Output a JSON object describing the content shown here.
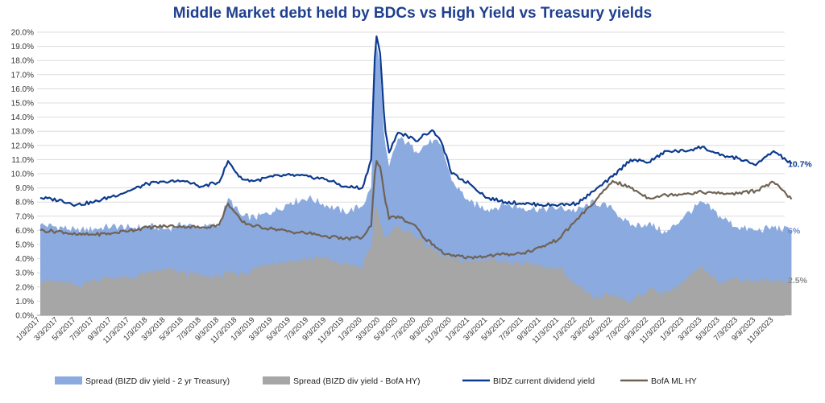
{
  "chart_data": {
    "type": "area",
    "title": "Middle Market debt held by BDCs vs High Yield vs Treasury yields",
    "ylim": [
      0,
      20
    ],
    "yticks": [
      "0.0%",
      "1.0%",
      "2.0%",
      "3.0%",
      "4.0%",
      "5.0%",
      "6.0%",
      "7.0%",
      "8.0%",
      "9.0%",
      "10.0%",
      "11.0%",
      "12.0%",
      "13.0%",
      "14.0%",
      "15.0%",
      "16.0%",
      "17.0%",
      "18.0%",
      "19.0%",
      "20.0%"
    ],
    "xticks": [
      "1/3/2017",
      "3/3/2017",
      "5/3/2017",
      "7/3/2017",
      "9/3/2017",
      "11/3/2017",
      "1/3/2018",
      "3/3/2018",
      "5/3/2018",
      "7/3/2018",
      "9/3/2018",
      "11/3/2018",
      "1/3/2019",
      "3/3/2019",
      "5/3/2019",
      "7/3/2019",
      "9/3/2019",
      "11/3/2019",
      "1/3/2020",
      "3/3/2020",
      "5/3/2020",
      "7/3/2020",
      "9/3/2020",
      "11/3/2020",
      "1/3/2021",
      "3/3/2021",
      "5/3/2021",
      "7/3/2021",
      "9/3/2021",
      "11/3/2021",
      "1/3/2022",
      "3/3/2022",
      "5/3/2022",
      "7/3/2022",
      "9/3/2022",
      "11/3/2022",
      "1/3/2023",
      "3/3/2023",
      "5/3/2023",
      "7/3/2023",
      "9/3/2023",
      "11/3/2023"
    ],
    "x_months": [
      0,
      2.5,
      4,
      6,
      8,
      10,
      12,
      14,
      16,
      18,
      20,
      21,
      22.5,
      24,
      26,
      28,
      30,
      32,
      34,
      36,
      37,
      37.5,
      38,
      38.5,
      39,
      40,
      41,
      42,
      43,
      44,
      45,
      46,
      48,
      50,
      52,
      54,
      56,
      58,
      60,
      62,
      64,
      66,
      68,
      70,
      72,
      74,
      76,
      78,
      80,
      82,
      84
    ],
    "series": [
      {
        "name": "Spread (BIZD div yield - 2 yr Treasury)",
        "kind": "area",
        "color": "#8aaae0",
        "values": [
          6.4,
          6.2,
          6.0,
          6.1,
          6.3,
          6.2,
          6.3,
          6.1,
          6.4,
          6.2,
          6.4,
          8.3,
          7.0,
          6.9,
          7.3,
          8.0,
          8.3,
          7.8,
          7.3,
          7.7,
          9.0,
          19.5,
          17.5,
          12.0,
          10.5,
          12.5,
          12.2,
          11.6,
          12.0,
          12.4,
          11.7,
          9.5,
          8.0,
          7.5,
          7.8,
          7.6,
          7.5,
          7.6,
          7.4,
          8.0,
          7.5,
          6.3,
          6.5,
          5.8,
          7.0,
          8.0,
          7.0,
          6.2,
          6.0,
          6.2,
          6.0
        ],
        "end_label": "6%"
      },
      {
        "name": "Spread (BIZD div yield - BofA HY)",
        "kind": "area",
        "color": "#a6a6a6",
        "values": [
          2.5,
          2.3,
          2.1,
          2.5,
          2.7,
          2.6,
          3.0,
          3.2,
          3.0,
          2.8,
          2.7,
          3.0,
          2.9,
          3.3,
          3.8,
          3.8,
          4.0,
          4.0,
          3.6,
          3.4,
          4.8,
          8.0,
          6.5,
          5.4,
          5.8,
          6.2,
          6.0,
          5.6,
          5.0,
          4.6,
          4.2,
          4.0,
          3.8,
          4.0,
          3.9,
          3.6,
          3.5,
          3.3,
          2.0,
          1.2,
          1.5,
          1.0,
          1.8,
          1.6,
          2.4,
          3.4,
          2.4,
          2.6,
          2.5,
          2.4,
          2.5
        ],
        "end_label": "2.5%"
      },
      {
        "name": "BIDZ current dividend yield",
        "kind": "line",
        "color": "#0b3a8f",
        "values": [
          8.3,
          8.1,
          7.8,
          8.0,
          8.4,
          8.8,
          9.3,
          9.4,
          9.5,
          9.1,
          9.4,
          10.9,
          9.6,
          9.5,
          9.8,
          9.9,
          9.8,
          9.6,
          9.1,
          9.0,
          11.0,
          20.0,
          18.5,
          13.5,
          11.5,
          12.9,
          12.7,
          12.3,
          12.8,
          13.0,
          12.0,
          10.0,
          9.3,
          8.3,
          8.0,
          7.9,
          7.8,
          7.8,
          7.9,
          8.8,
          9.8,
          11.0,
          10.8,
          11.6,
          11.6,
          11.9,
          11.3,
          11.1,
          10.6,
          11.6,
          10.7
        ],
        "end_label": "10.7%"
      },
      {
        "name": "BofA ML HY",
        "kind": "line",
        "color": "#6f6253",
        "values": [
          6.0,
          5.9,
          5.7,
          5.7,
          5.8,
          6.0,
          6.2,
          6.3,
          6.3,
          6.2,
          6.4,
          7.9,
          6.6,
          6.3,
          6.1,
          5.9,
          5.8,
          5.6,
          5.4,
          5.5,
          6.3,
          11.0,
          10.5,
          8.4,
          6.8,
          7.0,
          6.6,
          6.3,
          5.4,
          5.0,
          4.4,
          4.2,
          4.1,
          4.2,
          4.3,
          4.4,
          4.8,
          5.4,
          6.8,
          8.0,
          9.5,
          9.0,
          8.3,
          8.5,
          8.6,
          8.7,
          8.6,
          8.6,
          8.8,
          9.4,
          8.2
        ],
        "end_label": ""
      }
    ],
    "legend_position": "bottom",
    "grid": "horizontal"
  }
}
